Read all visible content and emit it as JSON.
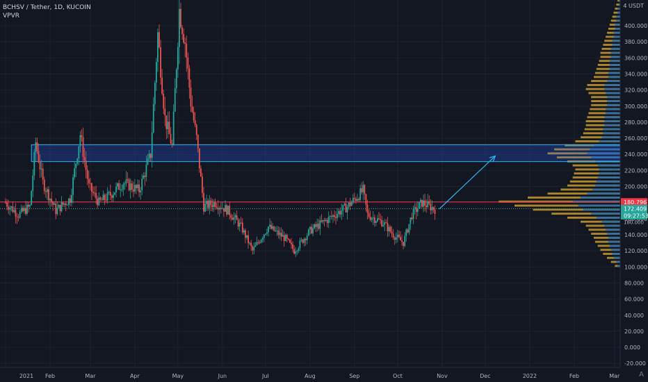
{
  "header": {
    "symbol_line": "BCHSV / Tether, 1D, KUCOIN",
    "indicator": "VPVR"
  },
  "price_axis": {
    "currency": "USDT",
    "tick_labels": [
      "400.000",
      "380.000",
      "360.000",
      "340.000",
      "320.000",
      "300.000",
      "280.000",
      "260.000",
      "240.000",
      "220.000",
      "200.000",
      "180.000",
      "160.000",
      "140.000",
      "120.000",
      "100.000",
      "80.000",
      "60.000",
      "40.000",
      "20.000",
      "0.000",
      "-20.000"
    ],
    "tick_values": [
      400,
      380,
      360,
      340,
      320,
      300,
      280,
      260,
      240,
      220,
      200,
      180,
      160,
      140,
      120,
      100,
      80,
      60,
      40,
      20,
      0,
      -20
    ],
    "corner_number": "4",
    "resistance_label": "180.796",
    "last_price_label": "172.409",
    "countdown_label": "09:27:53",
    "poc_label": "180.000"
  },
  "time_axis": {
    "labels": [
      "2021",
      "Feb",
      "Mar",
      "Apr",
      "May",
      "Jun",
      "Jul",
      "Aug",
      "Sep",
      "Oct",
      "Nov",
      "Dec",
      "2022",
      "Feb",
      "Mar"
    ]
  },
  "corner_icon": "auto-scale-icon",
  "colors": {
    "background": "#131722",
    "up": "#26a69a",
    "down": "#ef5350",
    "zone_fill": "#2962ff",
    "zone_border": "#29b6f6",
    "arrow": "#29b6f6",
    "resistance": "#f23645",
    "vp_up": "#2e6ea8",
    "vp_down": "#c99a2e"
  },
  "chart_data": {
    "type": "candlestick",
    "x_range": [
      "2021-01-01",
      "2022-03-05"
    ],
    "ylim": [
      -25,
      432
    ],
    "price_path": [
      [
        "2021-01-01",
        180
      ],
      [
        "2021-01-10",
        165
      ],
      [
        "2021-01-18",
        175
      ],
      [
        "2021-01-22",
        255
      ],
      [
        "2021-01-27",
        205
      ],
      [
        "2021-02-05",
        170
      ],
      [
        "2021-02-15",
        185
      ],
      [
        "2021-02-22",
        265
      ],
      [
        "2021-02-28",
        200
      ],
      [
        "2021-03-07",
        180
      ],
      [
        "2021-03-15",
        190
      ],
      [
        "2021-03-24",
        205
      ],
      [
        "2021-04-04",
        195
      ],
      [
        "2021-04-12",
        240
      ],
      [
        "2021-04-17",
        390
      ],
      [
        "2021-04-22",
        285
      ],
      [
        "2021-04-27",
        250
      ],
      [
        "2021-05-02",
        420
      ],
      [
        "2021-05-06",
        380
      ],
      [
        "2021-05-10",
        305
      ],
      [
        "2021-05-14",
        260
      ],
      [
        "2021-05-19",
        175
      ],
      [
        "2021-05-27",
        180
      ],
      [
        "2021-06-05",
        170
      ],
      [
        "2021-06-14",
        150
      ],
      [
        "2021-06-22",
        120
      ],
      [
        "2021-07-03",
        150
      ],
      [
        "2021-07-15",
        135
      ],
      [
        "2021-07-21",
        120
      ],
      [
        "2021-08-01",
        145
      ],
      [
        "2021-08-14",
        160
      ],
      [
        "2021-08-27",
        175
      ],
      [
        "2021-09-07",
        195
      ],
      [
        "2021-09-10",
        165
      ],
      [
        "2021-09-21",
        155
      ],
      [
        "2021-09-28",
        140
      ],
      [
        "2021-10-05",
        130
      ],
      [
        "2021-10-11",
        165
      ],
      [
        "2021-10-18",
        180
      ],
      [
        "2021-10-27",
        172
      ]
    ],
    "resistance_line": 180.796,
    "last_price": 172.409,
    "zone": {
      "from": 231,
      "to": 252,
      "start": "2021-01-19"
    },
    "arrow": {
      "from": [
        "2021-10-30",
        172
      ],
      "to": [
        "2021-12-08",
        238
      ]
    },
    "volume_profile": [
      [
        100,
        0.04,
        0.02
      ],
      [
        105,
        0.07,
        0.03
      ],
      [
        110,
        0.1,
        0.05
      ],
      [
        115,
        0.13,
        0.06
      ],
      [
        120,
        0.15,
        0.07
      ],
      [
        125,
        0.17,
        0.08
      ],
      [
        130,
        0.19,
        0.09
      ],
      [
        135,
        0.2,
        0.09
      ],
      [
        140,
        0.22,
        0.1
      ],
      [
        145,
        0.24,
        0.11
      ],
      [
        150,
        0.26,
        0.12
      ],
      [
        155,
        0.3,
        0.14
      ],
      [
        160,
        0.4,
        0.18
      ],
      [
        165,
        0.52,
        0.22
      ],
      [
        170,
        0.66,
        0.28
      ],
      [
        175,
        0.8,
        0.32
      ],
      [
        180,
        0.92,
        0.36
      ],
      [
        185,
        0.7,
        0.3
      ],
      [
        190,
        0.55,
        0.25
      ],
      [
        195,
        0.45,
        0.21
      ],
      [
        200,
        0.4,
        0.19
      ],
      [
        205,
        0.38,
        0.18
      ],
      [
        210,
        0.36,
        0.17
      ],
      [
        215,
        0.35,
        0.16
      ],
      [
        220,
        0.34,
        0.16
      ],
      [
        225,
        0.36,
        0.17
      ],
      [
        230,
        0.4,
        0.19
      ],
      [
        235,
        0.48,
        0.22
      ],
      [
        240,
        0.55,
        0.25
      ],
      [
        245,
        0.5,
        0.23
      ],
      [
        250,
        0.42,
        0.2
      ],
      [
        255,
        0.34,
        0.16
      ],
      [
        260,
        0.3,
        0.14
      ],
      [
        265,
        0.28,
        0.13
      ],
      [
        270,
        0.27,
        0.13
      ],
      [
        275,
        0.26,
        0.12
      ],
      [
        280,
        0.26,
        0.12
      ],
      [
        285,
        0.25,
        0.12
      ],
      [
        290,
        0.24,
        0.11
      ],
      [
        295,
        0.23,
        0.11
      ],
      [
        300,
        0.22,
        0.1
      ],
      [
        305,
        0.22,
        0.1
      ],
      [
        310,
        0.22,
        0.1
      ],
      [
        315,
        0.24,
        0.11
      ],
      [
        320,
        0.26,
        0.12
      ],
      [
        325,
        0.25,
        0.12
      ],
      [
        330,
        0.22,
        0.1
      ],
      [
        335,
        0.2,
        0.09
      ],
      [
        340,
        0.19,
        0.09
      ],
      [
        345,
        0.18,
        0.08
      ],
      [
        350,
        0.17,
        0.08
      ],
      [
        355,
        0.16,
        0.08
      ],
      [
        360,
        0.15,
        0.07
      ],
      [
        365,
        0.15,
        0.07
      ],
      [
        370,
        0.14,
        0.07
      ],
      [
        375,
        0.13,
        0.06
      ],
      [
        380,
        0.12,
        0.06
      ],
      [
        385,
        0.11,
        0.05
      ],
      [
        390,
        0.1,
        0.05
      ],
      [
        395,
        0.09,
        0.04
      ],
      [
        400,
        0.08,
        0.04
      ],
      [
        405,
        0.07,
        0.03
      ],
      [
        410,
        0.06,
        0.03
      ],
      [
        415,
        0.05,
        0.02
      ],
      [
        420,
        0.04,
        0.02
      ],
      [
        425,
        0.03,
        0.01
      ],
      [
        430,
        0.02,
        0.01
      ]
    ]
  }
}
